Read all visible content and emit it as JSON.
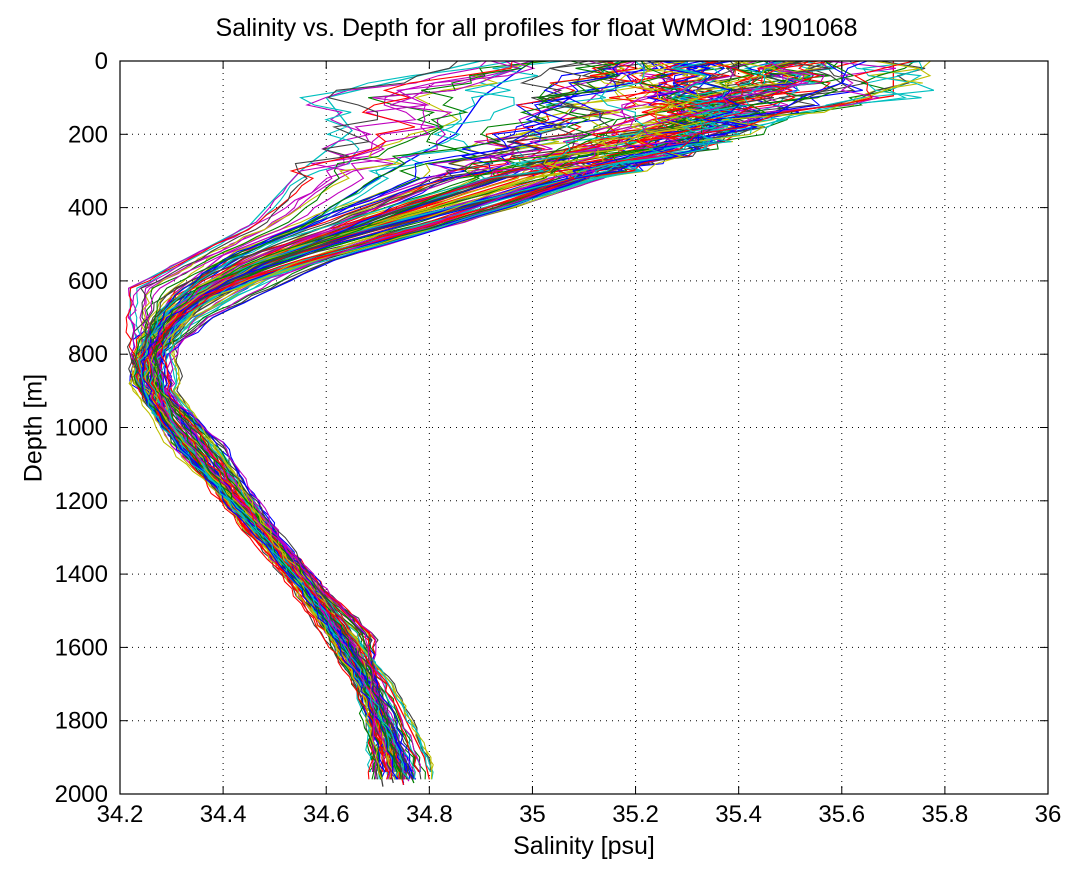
{
  "chart_data": {
    "type": "line",
    "title": "Salinity vs. Depth for all profiles for float WMOId: 1901068",
    "xlabel": "Salinity [psu]",
    "ylabel": "Depth [m]",
    "xlim": [
      34.2,
      36
    ],
    "ylim": [
      0,
      2000
    ],
    "y_reversed": true,
    "grid": true,
    "legend": "none",
    "x_ticks": [
      34.2,
      34.4,
      34.6,
      34.8,
      35,
      35.2,
      35.4,
      35.6,
      35.8,
      36
    ],
    "x_tick_labels": [
      "34.2",
      "34.4",
      "34.6",
      "34.8",
      "35",
      "35.2",
      "35.4",
      "35.6",
      "35.8",
      "36"
    ],
    "y_ticks": [
      0,
      200,
      400,
      600,
      800,
      1000,
      1200,
      1400,
      1600,
      1800,
      2000
    ],
    "y_tick_labels": [
      "0",
      "200",
      "400",
      "600",
      "800",
      "1000",
      "1200",
      "1400",
      "1600",
      "1800",
      "2000"
    ],
    "profile_count_approx": 120,
    "colors": [
      "#0000ff",
      "#008000",
      "#ff0000",
      "#00bfbf",
      "#bf00bf",
      "#bfbf00",
      "#404040"
    ],
    "series": [
      {
        "color": "#ff0000",
        "depth": [
          0,
          95,
          150,
          250,
          400,
          550,
          650,
          750,
          900,
          1100,
          1300,
          1500,
          1700,
          1900,
          1960
        ],
        "salinity": [
          35.7,
          35.7,
          35.45,
          35.25,
          34.95,
          34.55,
          34.35,
          34.28,
          34.3,
          34.4,
          34.48,
          34.6,
          34.72,
          34.79,
          34.8
        ]
      },
      {
        "color": "#404040",
        "depth": [
          0,
          60,
          150,
          250,
          400,
          550,
          700,
          800,
          900,
          1050,
          1300,
          1500,
          1700,
          1900,
          1980
        ],
        "salinity": [
          35.6,
          35.6,
          35.45,
          35.25,
          34.95,
          34.6,
          34.38,
          34.28,
          34.28,
          34.4,
          34.5,
          34.58,
          34.66,
          34.7,
          34.71
        ]
      },
      {
        "color": "#0000ff",
        "depth": [
          0,
          80,
          150,
          250,
          380,
          500,
          600,
          700,
          820,
          950,
          1100,
          1300,
          1500,
          1700,
          1900,
          1975
        ],
        "salinity": [
          35.3,
          35.3,
          35.45,
          35.3,
          34.9,
          34.55,
          34.38,
          34.28,
          34.23,
          34.26,
          34.35,
          34.48,
          34.6,
          34.68,
          34.74,
          34.75
        ]
      },
      {
        "color": "#008000",
        "depth": [
          0,
          100,
          180,
          300,
          420,
          540,
          650,
          760,
          880,
          1000,
          1200,
          1400,
          1600,
          1800,
          1970
        ],
        "salinity": [
          35.35,
          35.25,
          35.35,
          35.15,
          34.8,
          34.5,
          34.33,
          34.25,
          34.24,
          34.3,
          34.42,
          34.54,
          34.64,
          34.72,
          34.77
        ]
      },
      {
        "color": "#00bfbf",
        "depth": [
          0,
          100,
          190,
          300,
          450,
          560,
          620,
          700,
          800,
          950,
          1150,
          1350,
          1550,
          1750,
          1950
        ],
        "salinity": [
          34.9,
          34.6,
          34.65,
          34.55,
          34.45,
          34.3,
          34.22,
          34.22,
          34.24,
          34.3,
          34.42,
          34.53,
          34.63,
          34.7,
          34.74
        ]
      },
      {
        "color": "#bf00bf",
        "depth": [
          0,
          120,
          200,
          300,
          420,
          530,
          640,
          760,
          900,
          1050,
          1250,
          1450,
          1650,
          1850,
          1965
        ],
        "salinity": [
          35.2,
          35.1,
          35.0,
          34.85,
          34.6,
          34.4,
          34.3,
          34.25,
          34.24,
          34.3,
          34.45,
          34.56,
          34.66,
          34.73,
          34.76
        ]
      },
      {
        "color": "#bfbf00",
        "depth": [
          0,
          60,
          150,
          280,
          420,
          560,
          680,
          800,
          950,
          1100,
          1300,
          1450,
          1570
        ],
        "salinity": [
          35.55,
          35.5,
          35.3,
          35.0,
          34.7,
          34.45,
          34.32,
          34.26,
          34.28,
          34.36,
          34.5,
          34.6,
          34.69
        ]
      },
      {
        "color": "#0000ff",
        "depth": [
          0,
          100,
          200,
          320,
          450,
          570,
          680,
          800,
          920,
          1080,
          1280,
          1480,
          1680,
          1880,
          1970
        ],
        "salinity": [
          35.0,
          34.9,
          34.85,
          34.7,
          34.55,
          34.38,
          34.28,
          34.24,
          34.25,
          34.33,
          34.46,
          34.58,
          34.67,
          34.73,
          34.75
        ]
      },
      {
        "color": "#404040",
        "depth": [
          0,
          150,
          250,
          350,
          480,
          600,
          700,
          760,
          850,
          1000,
          1200,
          1400,
          1600,
          1800,
          1970
        ],
        "salinity": [
          35.4,
          35.35,
          35.25,
          35.05,
          34.75,
          34.45,
          34.33,
          34.3,
          34.26,
          34.3,
          34.4,
          34.52,
          34.62,
          34.7,
          34.73
        ]
      },
      {
        "color": "#ff0000",
        "depth": [
          0,
          90,
          170,
          270,
          400,
          520,
          640,
          760,
          880,
          1020,
          1220,
          1420,
          1620,
          1820,
          1975
        ],
        "salinity": [
          35.15,
          35.25,
          35.3,
          35.1,
          34.8,
          34.5,
          34.33,
          34.26,
          34.24,
          34.32,
          34.45,
          34.56,
          34.65,
          34.72,
          34.75
        ]
      }
    ]
  }
}
